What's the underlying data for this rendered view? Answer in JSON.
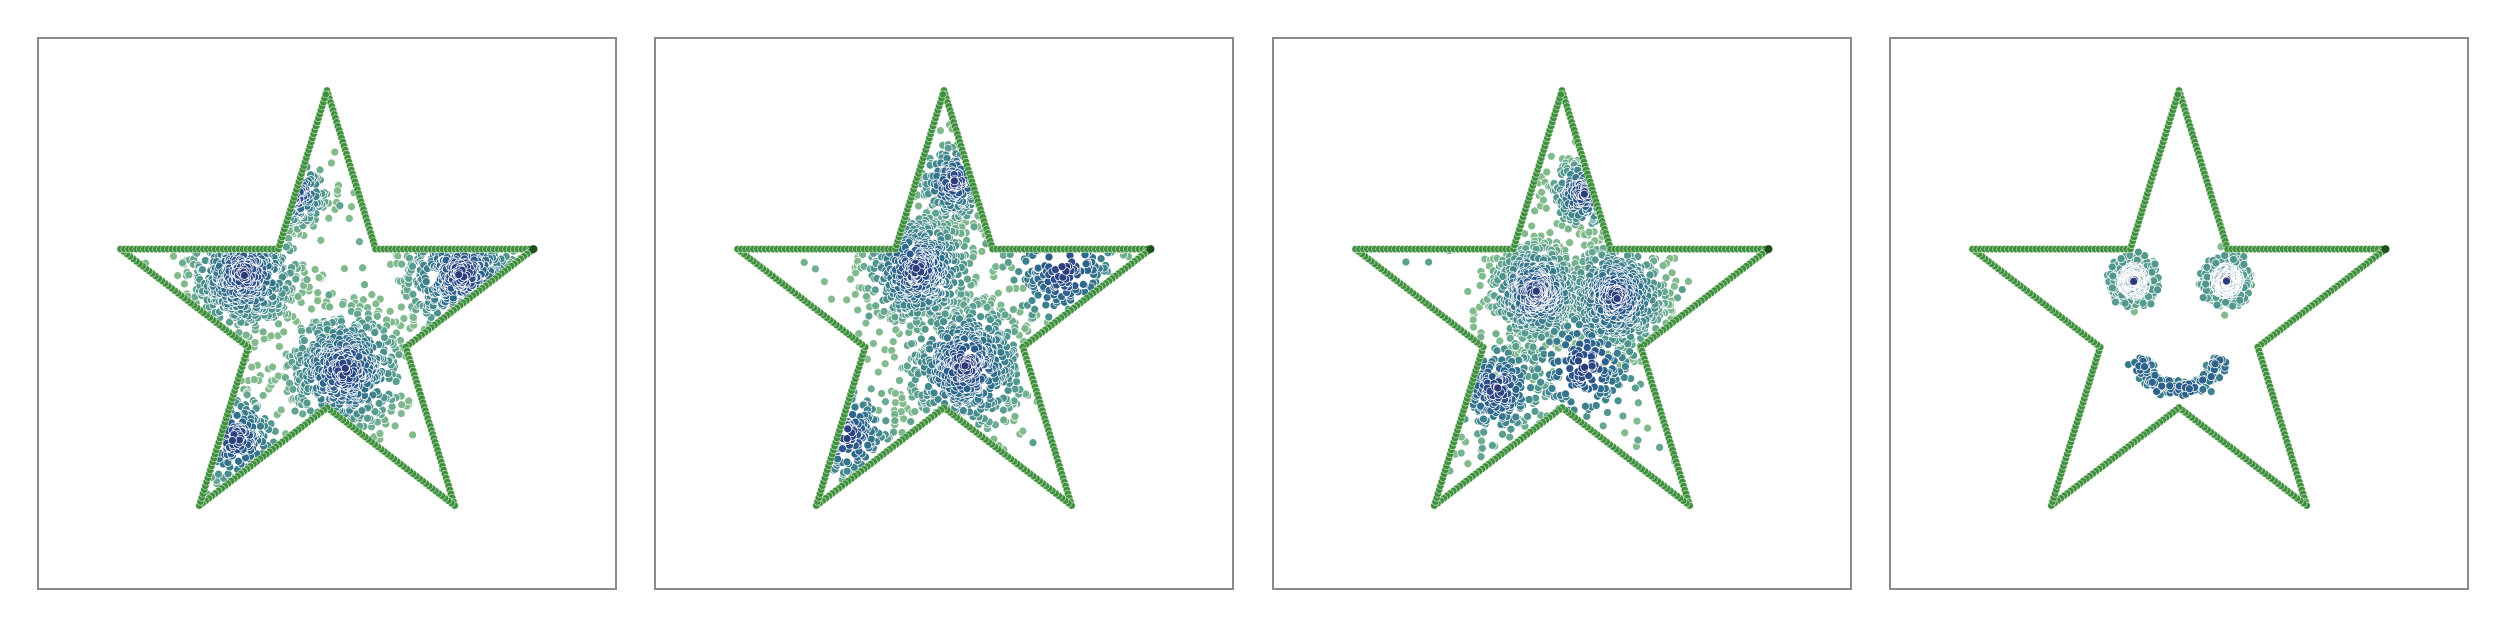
{
  "chart_data": [
    {
      "type": "scatter",
      "title": "",
      "xlabel": "",
      "ylabel": "",
      "xlim": [
        -1.05,
        1.05
      ],
      "ylim": [
        -0.95,
        1.05
      ],
      "grid": false,
      "axes_ticks": false,
      "series": [
        {
          "role": "boundary",
          "shape": "five-pointed star outline",
          "color": "#3f8f3f",
          "star_vertices": [
            [
              0,
              1
            ],
            [
              0.224,
              0.309
            ],
            [
              0.951,
              0.309
            ],
            [
              0.363,
              -0.118
            ],
            [
              0.588,
              -0.809
            ],
            [
              0,
              -0.382
            ],
            [
              -0.588,
              -0.809
            ],
            [
              -0.363,
              -0.118
            ],
            [
              -0.951,
              0.309
            ],
            [
              -0.224,
              0.309
            ]
          ]
        },
        {
          "role": "samples",
          "colormap": "crest",
          "clusters": [
            {
              "center": [
                -0.38,
                0.2
              ],
              "spread": 0.13,
              "density": "high"
            },
            {
              "center": [
                0.08,
                -0.22
              ],
              "spread": 0.14,
              "density": "high"
            },
            {
              "center": [
                0.62,
                0.2
              ],
              "spread": 0.14,
              "density": "high"
            },
            {
              "center": [
                -0.15,
                0.55
              ],
              "spread": 0.08,
              "density": "medium"
            },
            {
              "center": [
                -0.42,
                -0.52
              ],
              "spread": 0.11,
              "density": "medium"
            }
          ]
        }
      ]
    },
    {
      "type": "scatter",
      "title": "",
      "xlabel": "",
      "ylabel": "",
      "xlim": [
        -1.05,
        1.05
      ],
      "ylim": [
        -0.95,
        1.05
      ],
      "grid": false,
      "axes_ticks": false,
      "series": [
        {
          "role": "boundary",
          "shape": "five-pointed star outline",
          "color": "#3f8f3f",
          "star_vertices": [
            [
              0,
              1
            ],
            [
              0.224,
              0.309
            ],
            [
              0.951,
              0.309
            ],
            [
              0.363,
              -0.118
            ],
            [
              0.588,
              -0.809
            ],
            [
              0,
              -0.382
            ],
            [
              -0.588,
              -0.809
            ],
            [
              -0.363,
              -0.118
            ],
            [
              -0.951,
              0.309
            ],
            [
              -0.224,
              0.309
            ]
          ]
        },
        {
          "role": "samples",
          "colormap": "crest",
          "clusters": [
            {
              "center": [
                -0.12,
                0.22
              ],
              "spread": 0.13,
              "density": "high"
            },
            {
              "center": [
                0.1,
                -0.2
              ],
              "spread": 0.15,
              "density": "high"
            },
            {
              "center": [
                0.55,
                0.22
              ],
              "spread": 0.15,
              "density": "medium"
            },
            {
              "center": [
                0.05,
                0.6
              ],
              "spread": 0.09,
              "density": "medium"
            },
            {
              "center": [
                -0.45,
                -0.5
              ],
              "spread": 0.12,
              "density": "medium"
            }
          ]
        }
      ]
    },
    {
      "type": "scatter",
      "title": "",
      "xlabel": "",
      "ylabel": "",
      "xlim": [
        -1.05,
        1.05
      ],
      "ylim": [
        -0.95,
        1.05
      ],
      "grid": false,
      "axes_ticks": false,
      "series": [
        {
          "role": "boundary",
          "shape": "five-pointed star outline",
          "color": "#3f8f3f",
          "star_vertices": [
            [
              0,
              1
            ],
            [
              0.224,
              0.309
            ],
            [
              0.951,
              0.309
            ],
            [
              0.363,
              -0.118
            ],
            [
              0.588,
              -0.809
            ],
            [
              0,
              -0.382
            ],
            [
              -0.588,
              -0.809
            ],
            [
              -0.363,
              -0.118
            ],
            [
              -0.951,
              0.309
            ],
            [
              -0.224,
              0.309
            ]
          ]
        },
        {
          "role": "samples",
          "colormap": "crest",
          "clusters": [
            {
              "center": [
                -0.12,
                0.12
              ],
              "spread": 0.11,
              "density": "high"
            },
            {
              "center": [
                0.25,
                0.1
              ],
              "spread": 0.12,
              "density": "high"
            },
            {
              "center": [
                0.1,
                -0.2
              ],
              "spread": 0.15,
              "density": "medium"
            },
            {
              "center": [
                0.1,
                0.55
              ],
              "spread": 0.08,
              "density": "medium"
            },
            {
              "center": [
                -0.3,
                -0.3
              ],
              "spread": 0.12,
              "density": "medium"
            }
          ]
        }
      ]
    },
    {
      "type": "scatter",
      "title": "",
      "xlabel": "",
      "ylabel": "",
      "xlim": [
        -1.05,
        1.05
      ],
      "ylim": [
        -0.95,
        1.05
      ],
      "grid": false,
      "axes_ticks": false,
      "series": [
        {
          "role": "boundary",
          "shape": "five-pointed star outline",
          "color": "#3f8f3f",
          "star_vertices": [
            [
              0,
              1
            ],
            [
              0.224,
              0.309
            ],
            [
              0.951,
              0.309
            ],
            [
              0.363,
              -0.118
            ],
            [
              0.588,
              -0.809
            ],
            [
              0,
              -0.382
            ],
            [
              -0.588,
              -0.809
            ],
            [
              -0.363,
              -0.118
            ],
            [
              -0.951,
              0.309
            ],
            [
              -0.224,
              0.309
            ]
          ]
        },
        {
          "role": "samples",
          "colormap": "crest",
          "pattern": "smiley face",
          "clusters": [
            {
              "center": [
                -0.21,
                0.17
              ],
              "spread": 0.04,
              "density": "high"
            },
            {
              "center": [
                0.22,
                0.17
              ],
              "spread": 0.04,
              "density": "high"
            }
          ],
          "rings": [
            {
              "center": [
                -0.21,
                0.17
              ],
              "radius": 0.1
            },
            {
              "center": [
                0.22,
                0.17
              ],
              "radius": 0.1
            }
          ],
          "arcs": [
            {
              "center": [
                0.0,
                0.0
              ],
              "radius": 0.2,
              "start_deg": 200,
              "end_deg": 340
            }
          ]
        }
      ]
    }
  ]
}
